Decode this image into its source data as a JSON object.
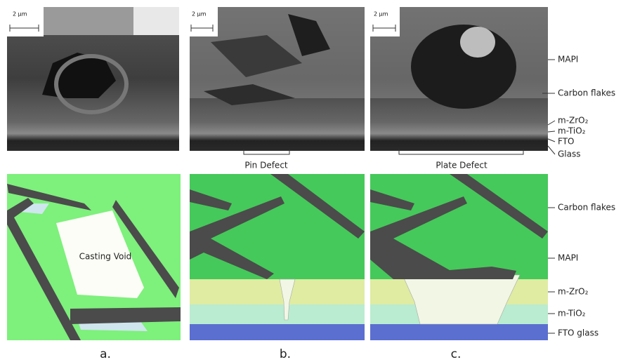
{
  "panels": [
    {
      "label": "a.",
      "scale_bar": "2 μm",
      "annotation": "Casting Void"
    },
    {
      "label": "b.",
      "scale_bar": "2 μm",
      "defect": "Pin Defect"
    },
    {
      "label": "c.",
      "scale_bar": "2 μm",
      "defect": "Plate Defect"
    }
  ],
  "sem_layers": [
    "MAPI",
    "Carbon flakes",
    "m-ZrO₂",
    "m-TiO₂",
    "FTO",
    "Glass"
  ],
  "schematic_layers": [
    "Carbon flakes",
    "MAPI",
    "m-ZrO₂",
    "m-TiO₂",
    "FTO glass"
  ]
}
